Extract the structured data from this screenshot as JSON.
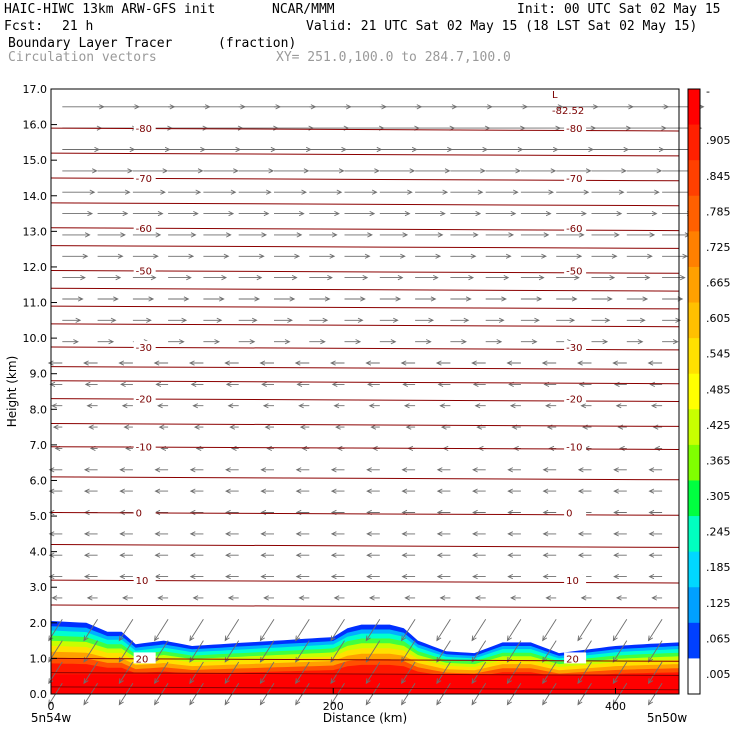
{
  "header": {
    "model": "HAIC-HIWC 13km ARW-GFS init",
    "org": "NCAR/MMM",
    "init": "Init: 00 UTC Sat 02 May 15",
    "fcst_label": "Fcst:",
    "fcst_value": "21 h",
    "valid": "Valid: 21 UTC Sat 02 May 15 (18 LST Sat 02 May 15)",
    "field1": "Boundary Layer Tracer",
    "field1_units": "(fraction)",
    "field2": "Circulation vectors",
    "xy_range": "XY= 251.0,100.0 to 284.7,100.0"
  },
  "chart_data": {
    "type": "heatmap",
    "xlabel": "Distance (km)",
    "ylabel": "Height (km)",
    "xlim": [
      0,
      445
    ],
    "ylim": [
      0.0,
      17.0
    ],
    "x_ticks": [
      "0",
      "200",
      "400"
    ],
    "x_tick_values": [
      0,
      200,
      400
    ],
    "x_end_labels": [
      "5n54w",
      "5n50w"
    ],
    "y_ticks": [
      "0.0",
      "1.0",
      "2.0",
      "3.0",
      "4.0",
      "5.0",
      "6.0",
      "7.0",
      "8.0",
      "9.0",
      "10.0",
      "11.0",
      "12.0",
      "13.0",
      "14.0",
      "15.0",
      "16.0",
      "17.0"
    ],
    "colorbar": {
      "labels": [
        "-",
        ".905",
        ".845",
        ".785",
        ".725",
        ".665",
        ".605",
        ".545",
        ".485",
        ".425",
        ".365",
        ".305",
        ".245",
        ".185",
        ".125",
        ".065",
        ".005"
      ],
      "colors": [
        "#ff0000",
        "#ff2000",
        "#ff4000",
        "#ff6000",
        "#ff8000",
        "#ffa000",
        "#ffc000",
        "#ffe000",
        "#ffff00",
        "#c8ff00",
        "#80ff00",
        "#00ff40",
        "#00ffc0",
        "#00d8ff",
        "#00a0ff",
        "#0040ff",
        "#ffffff"
      ]
    },
    "tracer_top_km": {
      "x": [
        0,
        25,
        40,
        50,
        60,
        80,
        100,
        120,
        160,
        200,
        210,
        220,
        240,
        250,
        260,
        280,
        300,
        320,
        340,
        360,
        380,
        400,
        420,
        445
      ],
      "top": [
        2.05,
        2.0,
        1.75,
        1.75,
        1.4,
        1.5,
        1.35,
        1.4,
        1.5,
        1.6,
        1.85,
        1.95,
        1.95,
        1.85,
        1.5,
        1.2,
        1.15,
        1.45,
        1.45,
        1.15,
        1.25,
        1.35,
        1.4,
        1.45
      ]
    },
    "temperature_contours": [
      {
        "label": "-80",
        "y": 15.9
      },
      {
        "label": "-70",
        "y": 14.5
      },
      {
        "label": "-60",
        "y": 13.1
      },
      {
        "label": "-50",
        "y": 11.9
      },
      {
        "label": "-30",
        "y": 9.75
      },
      {
        "label": "-20",
        "y": 8.3
      },
      {
        "label": "-10",
        "y": 6.95
      },
      {
        "label": "0",
        "y": 5.1
      },
      {
        "label": "10",
        "y": 3.2
      },
      {
        "label": "20",
        "y": 1.0
      }
    ],
    "extra_contour_levels": [
      15.2,
      13.8,
      12.6,
      11.4,
      10.9,
      10.4,
      9.2,
      8.8,
      7.6,
      6.1,
      4.2,
      2.5,
      0.6,
      0.2
    ],
    "max_label": "-82.52",
    "max_marker": "L"
  }
}
